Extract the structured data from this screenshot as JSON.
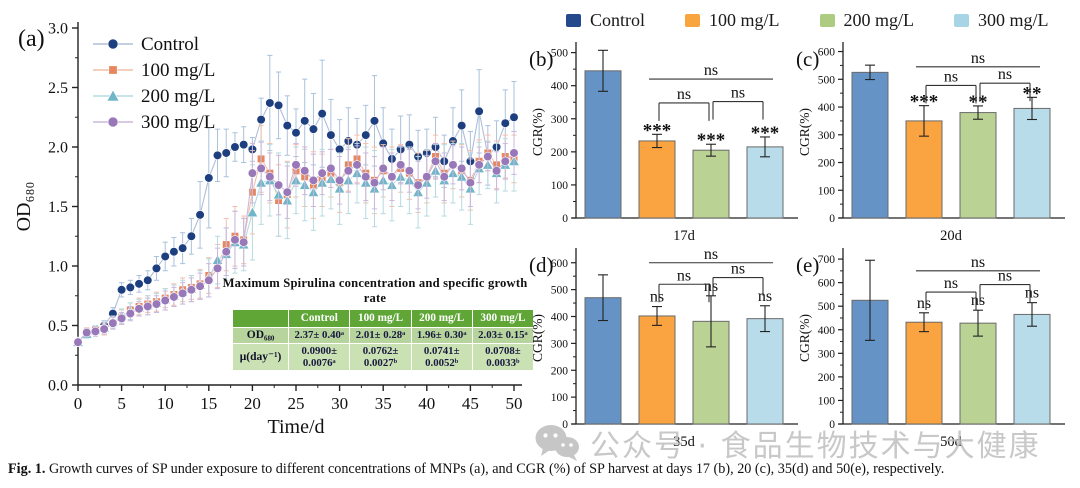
{
  "figure": {
    "caption_prefix": "Fig. 1.",
    "caption_text": " Growth curves of SP under exposure to different concentrations of MNPs (a), and CGR (%) of SP harvest at days 17 (b), 20 (c), 35(d) and 50(e), respectively."
  },
  "watermark": {
    "icon": "wechat-icon",
    "text": "公众号 · 食品生物技术与大健康",
    "color": "#bfbfbf"
  },
  "top_legend": {
    "items": [
      {
        "label": "Control",
        "color": "#24498C"
      },
      {
        "label": "100 mg/L",
        "color": "#F9A53F"
      },
      {
        "label": "200 mg/L",
        "color": "#AECB82"
      },
      {
        "label": "300 mg/L",
        "color": "#A8D5E5"
      }
    ]
  },
  "table": {
    "title": "Maximum Spirulina concentration and specific growth rate",
    "header": [
      "",
      "Control",
      "100 mg/L",
      "200 mg/L",
      "300 mg/L"
    ],
    "rows": [
      {
        "label": "OD₆₈₀",
        "values": [
          "2.37± 0.40ᵃ",
          "2.01± 0.28ᵃ",
          "1.96± 0.30ᵃ",
          "2.03± 0.15ᵃ"
        ]
      },
      {
        "label": "μ(day⁻¹)",
        "values": [
          "0.0900± 0.0076ᵃ",
          "0.0762± 0.0027ᵇ",
          "0.0741± 0.0052ᵇ",
          "0.0708± 0.0033ᵇ"
        ]
      }
    ],
    "header_bg": "#5FA636",
    "row_bgs": [
      "#B6D49C",
      "#CAE1B3"
    ]
  },
  "bar_colors": [
    "#6593C6",
    "#F9A441",
    "#BAD394",
    "#B9DCEA"
  ],
  "chart_data": [
    {
      "id": "a",
      "type": "scatter",
      "panel_label": "(a)",
      "xlabel": "Time/d",
      "ylabel": "OD₆₈₀",
      "xlim": [
        0,
        50
      ],
      "ylim": [
        0,
        3
      ],
      "xticks": [
        0,
        5,
        10,
        15,
        20,
        25,
        30,
        35,
        40,
        45,
        50
      ],
      "yticks": [
        0.0,
        0.5,
        1.0,
        1.5,
        2.0,
        2.5,
        3.0
      ],
      "legend_position": "top-left-inside",
      "x": [
        0,
        1,
        2,
        3,
        4,
        5,
        6,
        7,
        8,
        9,
        10,
        11,
        12,
        13,
        14,
        15,
        16,
        17,
        18,
        19,
        20,
        21,
        22,
        23,
        24,
        25,
        26,
        27,
        28,
        29,
        30,
        31,
        32,
        33,
        34,
        35,
        36,
        37,
        38,
        39,
        40,
        41,
        42,
        43,
        44,
        45,
        46,
        47,
        48,
        49,
        50
      ],
      "series": [
        {
          "name": "Control",
          "marker": "circle",
          "color": "#1E3F7F",
          "line_color": "#AFBDD8",
          "err_color": "#A9C2DC",
          "y": [
            0.36,
            0.45,
            0.47,
            0.5,
            0.6,
            0.8,
            0.82,
            0.85,
            0.88,
            0.98,
            1.08,
            1.12,
            1.15,
            1.25,
            1.43,
            1.74,
            1.93,
            1.95,
            2.0,
            2.02,
            1.98,
            2.23,
            2.37,
            2.35,
            2.18,
            2.12,
            2.22,
            2.15,
            2.28,
            2.1,
            1.98,
            2.05,
            2.02,
            2.1,
            2.22,
            2.03,
            1.9,
            1.98,
            2.02,
            1.92,
            1.95,
            2.0,
            1.88,
            2.05,
            2.18,
            1.88,
            2.3,
            1.93,
            2.0,
            2.2,
            2.25
          ],
          "err": [
            0.02,
            0.03,
            0.03,
            0.04,
            0.05,
            0.06,
            0.06,
            0.07,
            0.08,
            0.1,
            0.12,
            0.12,
            0.13,
            0.15,
            0.28,
            0.42,
            0.22,
            0.2,
            0.12,
            0.15,
            0.1,
            0.18,
            0.4,
            0.28,
            0.25,
            0.2,
            0.35,
            0.3,
            0.45,
            0.3,
            0.25,
            0.28,
            0.22,
            0.25,
            0.38,
            0.3,
            0.25,
            0.28,
            0.25,
            0.22,
            0.2,
            0.25,
            0.22,
            0.28,
            0.3,
            0.25,
            0.35,
            0.25,
            0.22,
            0.28,
            0.3
          ]
        },
        {
          "name": "100 mg/L",
          "marker": "square",
          "color": "#E8875F",
          "line_color": "#F2BFA9",
          "err_color": "#F3C0AC",
          "y": [
            0.36,
            0.44,
            0.46,
            0.47,
            0.52,
            0.57,
            0.63,
            0.66,
            0.68,
            0.7,
            0.73,
            0.76,
            0.8,
            0.82,
            0.85,
            0.92,
            1.0,
            1.18,
            1.25,
            1.22,
            1.62,
            1.9,
            1.78,
            1.55,
            1.6,
            1.8,
            1.75,
            1.68,
            1.72,
            1.78,
            1.7,
            1.85,
            1.9,
            1.78,
            1.72,
            1.8,
            1.75,
            1.82,
            1.78,
            1.7,
            1.75,
            1.92,
            1.78,
            1.85,
            1.8,
            1.72,
            1.88,
            1.95,
            1.85,
            1.92,
            1.9
          ],
          "err": [
            0.02,
            0.04,
            0.04,
            0.05,
            0.05,
            0.06,
            0.06,
            0.07,
            0.07,
            0.08,
            0.08,
            0.09,
            0.1,
            0.1,
            0.12,
            0.15,
            0.18,
            0.22,
            0.25,
            0.2,
            0.35,
            0.28,
            0.25,
            0.3,
            0.28,
            0.22,
            0.25,
            0.28,
            0.22,
            0.2,
            0.25,
            0.22,
            0.2,
            0.25,
            0.28,
            0.22,
            0.25,
            0.2,
            0.22,
            0.25,
            0.22,
            0.18,
            0.25,
            0.2,
            0.22,
            0.25,
            0.18,
            0.15,
            0.2,
            0.18,
            0.2
          ]
        },
        {
          "name": "200 mg/L",
          "marker": "triangle",
          "color": "#6FB6C8",
          "line_color": "#B5DAE2",
          "err_color": "#B5DAE2",
          "y": [
            0.36,
            0.43,
            0.46,
            0.48,
            0.53,
            0.58,
            0.62,
            0.65,
            0.67,
            0.69,
            0.72,
            0.75,
            0.78,
            0.81,
            0.84,
            0.9,
            1.05,
            1.1,
            1.2,
            1.18,
            1.45,
            1.7,
            1.72,
            1.6,
            1.55,
            1.72,
            1.68,
            1.62,
            1.7,
            1.73,
            1.65,
            1.72,
            1.78,
            1.7,
            1.65,
            1.72,
            1.68,
            1.75,
            1.72,
            1.62,
            1.7,
            1.8,
            1.72,
            1.78,
            1.75,
            1.65,
            1.82,
            1.85,
            1.78,
            1.85,
            1.88
          ],
          "err": [
            0.02,
            0.04,
            0.04,
            0.05,
            0.05,
            0.06,
            0.07,
            0.07,
            0.08,
            0.08,
            0.09,
            0.09,
            0.1,
            0.11,
            0.12,
            0.16,
            0.2,
            0.22,
            0.26,
            0.22,
            0.4,
            0.35,
            0.3,
            0.35,
            0.32,
            0.28,
            0.3,
            0.32,
            0.28,
            0.25,
            0.3,
            0.28,
            0.25,
            0.3,
            0.32,
            0.28,
            0.3,
            0.25,
            0.28,
            0.3,
            0.28,
            0.22,
            0.3,
            0.25,
            0.28,
            0.3,
            0.22,
            0.2,
            0.25,
            0.22,
            0.25
          ]
        },
        {
          "name": "300 mg/L",
          "marker": "circle",
          "color": "#9878B8",
          "line_color": "#CBB8DC",
          "err_color": "#CBB8DC",
          "y": [
            0.36,
            0.44,
            0.45,
            0.47,
            0.52,
            0.56,
            0.6,
            0.64,
            0.66,
            0.68,
            0.71,
            0.74,
            0.77,
            0.8,
            0.83,
            0.88,
            0.98,
            1.12,
            1.22,
            1.2,
            1.78,
            1.82,
            1.75,
            1.68,
            1.62,
            1.85,
            1.8,
            1.72,
            1.78,
            1.82,
            1.72,
            1.8,
            1.85,
            1.75,
            1.7,
            1.82,
            1.75,
            1.85,
            1.8,
            1.68,
            1.75,
            1.88,
            1.75,
            1.85,
            1.82,
            1.7,
            1.85,
            1.92,
            1.8,
            1.88,
            1.95
          ],
          "err": [
            0.02,
            0.03,
            0.04,
            0.04,
            0.05,
            0.05,
            0.06,
            0.06,
            0.07,
            0.07,
            0.08,
            0.08,
            0.09,
            0.1,
            0.11,
            0.14,
            0.17,
            0.2,
            0.24,
            0.2,
            0.25,
            0.22,
            0.2,
            0.25,
            0.22,
            0.18,
            0.2,
            0.22,
            0.18,
            0.16,
            0.2,
            0.18,
            0.16,
            0.2,
            0.22,
            0.18,
            0.2,
            0.16,
            0.18,
            0.2,
            0.18,
            0.15,
            0.2,
            0.16,
            0.18,
            0.2,
            0.15,
            0.12,
            0.16,
            0.15,
            0.18
          ]
        }
      ]
    },
    {
      "id": "b",
      "type": "bar",
      "panel_label": "(b)",
      "xlabel": "17d",
      "ylabel": "CGR(%)",
      "categories": [
        "Control",
        "100 mg/L",
        "200 mg/L",
        "300 mg/L"
      ],
      "values": [
        445,
        233,
        205,
        215
      ],
      "errors": [
        62,
        20,
        18,
        30
      ],
      "sig": [
        "",
        "***",
        "***",
        "***"
      ],
      "brackets": [
        {
          "from": 1,
          "to": 2,
          "y": 348,
          "label": "ns",
          "drops": true
        },
        {
          "from": 2,
          "to": 3,
          "y": 352,
          "label": "ns",
          "drops": true
        },
        {
          "from": 1,
          "to": 3,
          "y": 420,
          "label": "ns",
          "drops": false
        }
      ],
      "ylim": [
        0,
        520
      ],
      "ytick_step": 100
    },
    {
      "id": "c",
      "type": "bar",
      "panel_label": "(c)",
      "xlabel": "20d",
      "ylabel": "CGR(%)",
      "categories": [
        "Control",
        "100 mg/L",
        "200 mg/L",
        "300 mg/L"
      ],
      "values": [
        525,
        350,
        380,
        395
      ],
      "errors": [
        26,
        55,
        24,
        40
      ],
      "sig": [
        "",
        "***",
        "**",
        "**"
      ],
      "brackets": [
        {
          "from": 1,
          "to": 2,
          "y": 478,
          "label": "ns",
          "drops": true
        },
        {
          "from": 2,
          "to": 3,
          "y": 486,
          "label": "ns",
          "drops": true
        },
        {
          "from": 1,
          "to": 3,
          "y": 545,
          "label": "ns",
          "drops": false
        }
      ],
      "ylim": [
        0,
        620
      ],
      "ytick_step": 100
    },
    {
      "id": "d",
      "type": "bar",
      "panel_label": "(d)",
      "xlabel": "35d",
      "ylabel": "CGR(%)",
      "categories": [
        "Control",
        "100 mg/L",
        "200 mg/L",
        "300 mg/L"
      ],
      "values": [
        470,
        402,
        382,
        392
      ],
      "errors": [
        85,
        35,
        95,
        48
      ],
      "sig": [
        "",
        "ns",
        "ns",
        "ns"
      ],
      "brackets": [
        {
          "from": 1,
          "to": 2,
          "y": 520,
          "label": "ns",
          "drops": true
        },
        {
          "from": 2,
          "to": 3,
          "y": 545,
          "label": "ns",
          "drops": true
        },
        {
          "from": 1,
          "to": 3,
          "y": 600,
          "label": "ns",
          "drops": false
        }
      ],
      "ylim": [
        0,
        640
      ],
      "ytick_step": 100
    },
    {
      "id": "e",
      "type": "bar",
      "panel_label": "(e)",
      "xlabel": "50d",
      "ylabel": "CGR(%)",
      "categories": [
        "Control",
        "100 mg/L",
        "200 mg/L",
        "300 mg/L"
      ],
      "values": [
        525,
        432,
        428,
        465
      ],
      "errors": [
        170,
        40,
        55,
        50
      ],
      "sig": [
        "",
        "ns",
        "ns",
        "ns"
      ],
      "brackets": [
        {
          "from": 1,
          "to": 2,
          "y": 560,
          "label": "ns",
          "drops": true
        },
        {
          "from": 2,
          "to": 3,
          "y": 592,
          "label": "ns",
          "drops": true
        },
        {
          "from": 1,
          "to": 3,
          "y": 650,
          "label": "ns",
          "drops": false
        }
      ],
      "ylim": [
        0,
        730
      ],
      "ytick_step": 100
    }
  ]
}
